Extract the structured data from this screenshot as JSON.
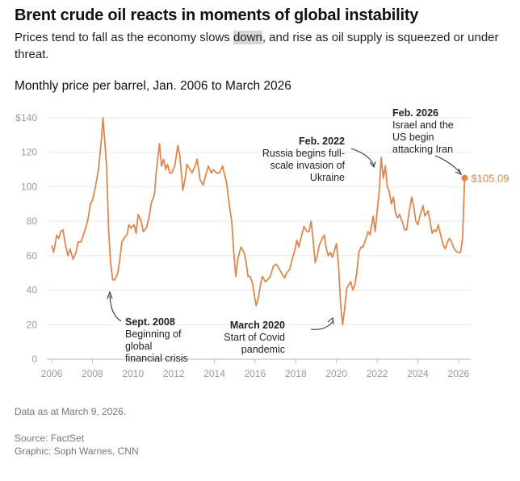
{
  "header": {
    "headline": "Brent crude oil reacts in moments of global instability",
    "subhead_before": "Prices tend to fall as the economy slows ",
    "subhead_highlight": "down",
    "subhead_after": ", and rise as oil supply is squeezed or under threat."
  },
  "chart_data": {
    "type": "line",
    "title": "Monthly price per barrel, Jan. 2006 to March 2026",
    "xlabel": "",
    "ylabel": "",
    "xlim": [
      2006,
      2026.6
    ],
    "ylim": [
      0,
      140
    ],
    "x_ticks": [
      "2006",
      "2008",
      "2010",
      "2012",
      "2014",
      "2016",
      "2018",
      "2020",
      "2022",
      "2024",
      "2026"
    ],
    "y_ticks": [
      "0",
      "20",
      "40",
      "60",
      "80",
      "100",
      "120",
      "$140"
    ],
    "y_tick_values": [
      0,
      20,
      40,
      60,
      80,
      100,
      120,
      140
    ],
    "color": "#e0874f",
    "series": [
      {
        "name": "Brent crude",
        "points": [
          [
            2006.0,
            66
          ],
          [
            2006.1,
            62
          ],
          [
            2006.25,
            72
          ],
          [
            2006.35,
            70
          ],
          [
            2006.45,
            74
          ],
          [
            2006.55,
            75
          ],
          [
            2006.7,
            65
          ],
          [
            2006.8,
            60
          ],
          [
            2006.9,
            64
          ],
          [
            2007.05,
            58
          ],
          [
            2007.2,
            62
          ],
          [
            2007.3,
            68
          ],
          [
            2007.45,
            68
          ],
          [
            2007.55,
            72
          ],
          [
            2007.7,
            77
          ],
          [
            2007.8,
            82
          ],
          [
            2007.9,
            90
          ],
          [
            2008.0,
            92
          ],
          [
            2008.15,
            100
          ],
          [
            2008.3,
            110
          ],
          [
            2008.45,
            128
          ],
          [
            2008.52,
            140
          ],
          [
            2008.6,
            128
          ],
          [
            2008.7,
            112
          ],
          [
            2008.8,
            75
          ],
          [
            2008.9,
            55
          ],
          [
            2009.0,
            46
          ],
          [
            2009.1,
            46
          ],
          [
            2009.25,
            50
          ],
          [
            2009.35,
            58
          ],
          [
            2009.45,
            68
          ],
          [
            2009.55,
            70
          ],
          [
            2009.7,
            72
          ],
          [
            2009.8,
            78
          ],
          [
            2009.9,
            76
          ],
          [
            2010.05,
            78
          ],
          [
            2010.15,
            73
          ],
          [
            2010.25,
            84
          ],
          [
            2010.4,
            80
          ],
          [
            2010.5,
            74
          ],
          [
            2010.65,
            76
          ],
          [
            2010.8,
            83
          ],
          [
            2010.9,
            91
          ],
          [
            2011.05,
            95
          ],
          [
            2011.15,
            110
          ],
          [
            2011.3,
            125
          ],
          [
            2011.4,
            112
          ],
          [
            2011.5,
            116
          ],
          [
            2011.6,
            110
          ],
          [
            2011.7,
            113
          ],
          [
            2011.8,
            108
          ],
          [
            2011.9,
            108
          ],
          [
            2012.05,
            112
          ],
          [
            2012.2,
            124
          ],
          [
            2012.3,
            118
          ],
          [
            2012.45,
            98
          ],
          [
            2012.55,
            104
          ],
          [
            2012.65,
            113
          ],
          [
            2012.8,
            110
          ],
          [
            2012.9,
            108
          ],
          [
            2013.05,
            112
          ],
          [
            2013.15,
            116
          ],
          [
            2013.3,
            104
          ],
          [
            2013.45,
            101
          ],
          [
            2013.6,
            108
          ],
          [
            2013.7,
            112
          ],
          [
            2013.85,
            108
          ],
          [
            2013.95,
            110
          ],
          [
            2014.1,
            108
          ],
          [
            2014.25,
            108
          ],
          [
            2014.4,
            112
          ],
          [
            2014.5,
            107
          ],
          [
            2014.6,
            102
          ],
          [
            2014.75,
            88
          ],
          [
            2014.85,
            80
          ],
          [
            2014.95,
            62
          ],
          [
            2015.05,
            48
          ],
          [
            2015.15,
            58
          ],
          [
            2015.3,
            65
          ],
          [
            2015.45,
            62
          ],
          [
            2015.55,
            57
          ],
          [
            2015.65,
            48
          ],
          [
            2015.75,
            48
          ],
          [
            2015.85,
            45
          ],
          [
            2015.95,
            38
          ],
          [
            2016.05,
            31
          ],
          [
            2016.15,
            35
          ],
          [
            2016.25,
            42
          ],
          [
            2016.35,
            48
          ],
          [
            2016.5,
            45
          ],
          [
            2016.6,
            46
          ],
          [
            2016.75,
            48
          ],
          [
            2016.9,
            54
          ],
          [
            2017.05,
            55
          ],
          [
            2017.2,
            52
          ],
          [
            2017.3,
            50
          ],
          [
            2017.45,
            47
          ],
          [
            2017.55,
            50
          ],
          [
            2017.7,
            52
          ],
          [
            2017.8,
            57
          ],
          [
            2017.95,
            63
          ],
          [
            2018.05,
            69
          ],
          [
            2018.15,
            65
          ],
          [
            2018.25,
            70
          ],
          [
            2018.4,
            77
          ],
          [
            2018.55,
            74
          ],
          [
            2018.65,
            74
          ],
          [
            2018.75,
            80
          ],
          [
            2018.85,
            70
          ],
          [
            2018.95,
            56
          ],
          [
            2019.05,
            60
          ],
          [
            2019.15,
            66
          ],
          [
            2019.3,
            70
          ],
          [
            2019.4,
            72
          ],
          [
            2019.5,
            64
          ],
          [
            2019.6,
            60
          ],
          [
            2019.7,
            62
          ],
          [
            2019.8,
            59
          ],
          [
            2019.9,
            63
          ],
          [
            2020.0,
            67
          ],
          [
            2020.1,
            55
          ],
          [
            2020.2,
            32
          ],
          [
            2020.3,
            20
          ],
          [
            2020.4,
            29
          ],
          [
            2020.5,
            41
          ],
          [
            2020.6,
            43
          ],
          [
            2020.7,
            45
          ],
          [
            2020.8,
            40
          ],
          [
            2020.9,
            43
          ],
          [
            2021.0,
            50
          ],
          [
            2021.1,
            62
          ],
          [
            2021.2,
            65
          ],
          [
            2021.3,
            65
          ],
          [
            2021.45,
            70
          ],
          [
            2021.55,
            74
          ],
          [
            2021.65,
            72
          ],
          [
            2021.8,
            83
          ],
          [
            2021.9,
            74
          ],
          [
            2022.0,
            86
          ],
          [
            2022.1,
            97
          ],
          [
            2022.2,
            117
          ],
          [
            2022.3,
            105
          ],
          [
            2022.4,
            112
          ],
          [
            2022.5,
            100
          ],
          [
            2022.6,
            97
          ],
          [
            2022.7,
            90
          ],
          [
            2022.8,
            94
          ],
          [
            2022.9,
            85
          ],
          [
            2023.0,
            82
          ],
          [
            2023.1,
            84
          ],
          [
            2023.25,
            79
          ],
          [
            2023.35,
            75
          ],
          [
            2023.45,
            75
          ],
          [
            2023.55,
            84
          ],
          [
            2023.7,
            94
          ],
          [
            2023.8,
            88
          ],
          [
            2023.9,
            80
          ],
          [
            2024.0,
            78
          ],
          [
            2024.1,
            83
          ],
          [
            2024.25,
            89
          ],
          [
            2024.35,
            83
          ],
          [
            2024.5,
            86
          ],
          [
            2024.6,
            80
          ],
          [
            2024.7,
            73
          ],
          [
            2024.8,
            75
          ],
          [
            2024.9,
            74
          ],
          [
            2025.0,
            78
          ],
          [
            2025.1,
            73
          ],
          [
            2025.25,
            66
          ],
          [
            2025.35,
            64
          ],
          [
            2025.45,
            68
          ],
          [
            2025.55,
            70
          ],
          [
            2025.65,
            68
          ],
          [
            2025.75,
            65
          ],
          [
            2025.85,
            63
          ],
          [
            2025.95,
            62
          ],
          [
            2026.1,
            62
          ],
          [
            2026.2,
            70
          ],
          [
            2026.3,
            105.09
          ]
        ]
      }
    ],
    "end_label": "$105.09",
    "annotations": [
      {
        "id": "sept-2008",
        "date": "Sept. 2008",
        "lines": [
          "Beginning of",
          "global",
          "financial crisis"
        ]
      },
      {
        "id": "march-2020",
        "date": "March 2020",
        "lines": [
          "Start of Covid",
          "pandemic"
        ]
      },
      {
        "id": "feb-2022",
        "date": "Feb. 2022",
        "lines": [
          "Russia begins full-",
          "scale invasion of",
          "Ukraine"
        ]
      },
      {
        "id": "feb-2026",
        "date": "Feb. 2026",
        "lines": [
          "Israel and the",
          "US begin",
          "attacking Iran"
        ]
      }
    ]
  },
  "footer": {
    "data_note": "Data as at March 9, 2026.",
    "source": "Source: FactSet",
    "graphic": "Graphic: Soph Warnes, CNN"
  }
}
